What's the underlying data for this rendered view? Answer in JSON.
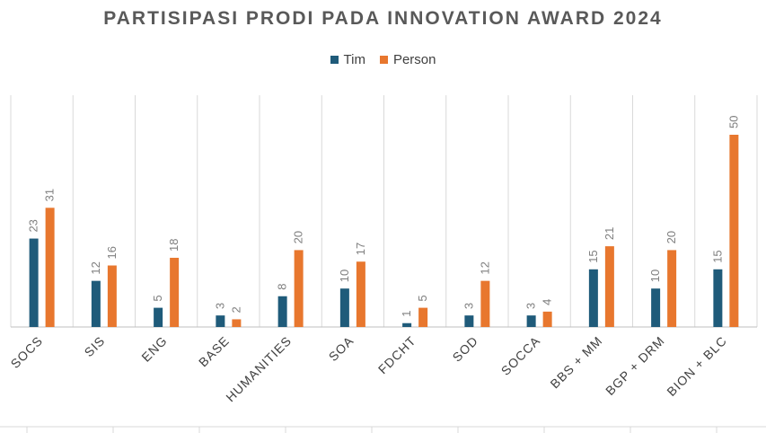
{
  "chart_data": {
    "type": "bar",
    "title": "PARTISIPASI PRODI PADA INNOVATION AWARD 2024",
    "categories": [
      "SOCS",
      "SIS",
      "ENG",
      "BASE",
      "HUMANITIES",
      "SOA",
      "FDCHT",
      "SOD",
      "SOCCA",
      "BBS + MM",
      "BGP + DRM",
      "BION + BLC"
    ],
    "series": [
      {
        "name": "Tim",
        "color": "#1f5b7a",
        "values": [
          23,
          12,
          5,
          3,
          8,
          10,
          1,
          3,
          3,
          15,
          10,
          15
        ]
      },
      {
        "name": "Person",
        "color": "#e8772e",
        "values": [
          31,
          16,
          18,
          2,
          20,
          17,
          5,
          12,
          4,
          21,
          20,
          50
        ]
      }
    ],
    "ylim": [
      0,
      55
    ],
    "legend_position": "top-center",
    "grid": "vertical category separators"
  }
}
